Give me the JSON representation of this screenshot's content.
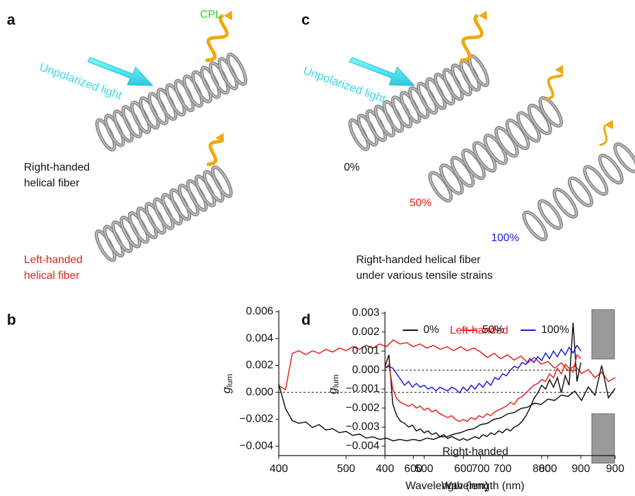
{
  "panels": {
    "a": {
      "label": "a",
      "cpl": "CPL",
      "light": "Unpolarized light",
      "right": [
        "Right-handed",
        "helical fiber"
      ],
      "left": [
        "Left-handed",
        "helical fiber"
      ]
    },
    "c": {
      "label": "c",
      "light": "Unpolarized light",
      "strains": [
        "0%",
        "50%",
        "100%"
      ],
      "caption": [
        "Right-handed helical fiber",
        "under various tensile strains"
      ]
    },
    "b": {
      "label": "b"
    },
    "d": {
      "label": "d"
    }
  },
  "chart_data": [
    {
      "type": "line",
      "xlabel": "Wavelength (nm)",
      "ylabel": {
        "main": "g",
        "sub": "lum"
      },
      "xlim": [
        400,
        900
      ],
      "xticks": [
        400,
        500,
        600,
        700,
        800,
        900
      ],
      "ylim": [
        -0.0047,
        0.006
      ],
      "yticks": [
        {
          "value": -0.004,
          "label": "−0.004"
        },
        {
          "value": -0.002,
          "label": "−0.002"
        },
        {
          "value": 0,
          "label": "0.000"
        },
        0.002,
        0.004,
        0.006
      ],
      "hline": 0,
      "annotations": [
        {
          "text": "Left-handed",
          "color": "#e0201b"
        },
        {
          "text": "Right-handed",
          "color": "#111111"
        }
      ],
      "x": [
        400,
        410,
        420,
        430,
        440,
        450,
        460,
        470,
        480,
        490,
        500,
        510,
        520,
        530,
        540,
        550,
        560,
        570,
        580,
        590,
        600,
        610,
        620,
        630,
        640,
        650,
        660,
        670,
        680,
        690,
        700,
        710,
        720,
        730,
        740,
        750,
        760,
        770,
        780,
        790,
        800,
        810,
        820,
        830,
        840,
        850,
        860,
        870,
        880,
        890,
        900
      ],
      "series": [
        {
          "color": "#e0201b",
          "values": [
            0.0005,
            0.0002,
            0.0029,
            0.0031,
            0.0028,
            0.0031,
            0.0029,
            0.0032,
            0.003,
            0.0033,
            0.0031,
            0.0034,
            0.0032,
            0.0035,
            0.0033,
            0.0036,
            0.0034,
            0.0039,
            0.0036,
            0.0037,
            0.0034,
            0.0036,
            0.0033,
            0.0035,
            0.0032,
            0.0034,
            0.0031,
            0.0034,
            0.0031,
            0.0033,
            0.003,
            0.0026,
            0.0029,
            0.0025,
            0.0028,
            0.0024,
            0.0027,
            0.0022,
            0.0026,
            0.0021,
            0.0023,
            0.0018,
            0.0022,
            0.0016,
            0.002,
            0.0014,
            0.0017,
            0.0011,
            0.0015,
            0.0008,
            0.0011
          ]
        },
        {
          "color": "#111111",
          "values": [
            0.0006,
            -0.0012,
            -0.0021,
            -0.0023,
            -0.0022,
            -0.0026,
            -0.0024,
            -0.0028,
            -0.0027,
            -0.003,
            -0.0029,
            -0.0032,
            -0.0031,
            -0.0034,
            -0.0033,
            -0.0035,
            -0.0034,
            -0.0036,
            -0.0035,
            -0.0036,
            -0.0035,
            -0.0036,
            -0.0034,
            -0.0035,
            -0.0033,
            -0.0033,
            -0.0031,
            -0.003,
            -0.0028,
            -0.0027,
            -0.0024,
            -0.0023,
            -0.002,
            -0.0019,
            -0.0016,
            -0.0015,
            -0.0012,
            -0.0011,
            -0.0008,
            -0.0009,
            -0.0005,
            -0.0006,
            -0.0002,
            -0.0003,
            0.0001,
            -0.0006,
            0.0004,
            -0.0002,
            0.002,
            -0.0004,
            0.0003
          ]
        }
      ]
    },
    {
      "type": "line",
      "xlabel": "Wavelength (nm)",
      "ylabel": {
        "main": "g",
        "sub": "lum"
      },
      "xlim": [
        400,
        900
      ],
      "xticks": [
        400,
        500,
        600,
        700,
        800,
        900
      ],
      "ylim": [
        -0.0045,
        0.003
      ],
      "yticks": [
        {
          "value": -0.004,
          "label": "−0.004"
        },
        {
          "value": -0.003,
          "label": "−0.003"
        },
        {
          "value": -0.002,
          "label": "−0.002"
        },
        {
          "value": -0.001,
          "label": "−0.001"
        },
        {
          "value": 0,
          "label": "0.000"
        },
        0.001,
        0.002,
        0.003
      ],
      "hline": 0,
      "x": [
        400,
        410,
        420,
        430,
        440,
        450,
        460,
        470,
        480,
        490,
        500,
        510,
        520,
        530,
        540,
        550,
        560,
        570,
        580,
        590,
        600,
        610,
        620,
        630,
        640,
        650,
        660,
        670,
        680,
        690,
        700,
        710,
        720,
        730,
        740,
        750,
        760,
        770,
        780,
        790,
        800,
        810,
        820,
        830,
        840,
        850,
        860,
        870,
        880,
        890,
        900
      ],
      "series": [
        {
          "name": "0%",
          "color": "#111111",
          "values": [
            0.0002,
            0.0008,
            -0.0018,
            -0.0024,
            -0.0027,
            -0.0028,
            -0.003,
            -0.0029,
            -0.0032,
            -0.0031,
            -0.0033,
            -0.0032,
            -0.0034,
            -0.0033,
            -0.0035,
            -0.0034,
            -0.0036,
            -0.0035,
            -0.0036,
            -0.0037,
            -0.0036,
            -0.0037,
            -0.0036,
            -0.0035,
            -0.0036,
            -0.0034,
            -0.0035,
            -0.0033,
            -0.0034,
            -0.0032,
            -0.0033,
            -0.0031,
            -0.0032,
            -0.003,
            -0.0029,
            -0.0027,
            -0.0024,
            -0.002,
            -0.0015,
            -0.0012,
            -0.0008,
            -0.001,
            -0.0005,
            -0.0009,
            -0.0004,
            -0.0012,
            -0.0003,
            -0.0008,
            0.0025,
            -0.0006,
            0.0004
          ]
        },
        {
          "name": "50%",
          "color": "#e0201b",
          "values": [
            0.0001,
            0.0003,
            -0.001,
            -0.0015,
            -0.0017,
            -0.0018,
            -0.0019,
            -0.0018,
            -0.002,
            -0.0019,
            -0.0021,
            -0.002,
            -0.0022,
            -0.0021,
            -0.0023,
            -0.0024,
            -0.0025,
            -0.0024,
            -0.0026,
            -0.0027,
            -0.0026,
            -0.0027,
            -0.0025,
            -0.0026,
            -0.0024,
            -0.0025,
            -0.0023,
            -0.0024,
            -0.0022,
            -0.0021,
            -0.002,
            -0.0019,
            -0.0017,
            -0.0018,
            -0.0015,
            -0.0014,
            -0.0012,
            -0.001,
            -0.0008,
            -0.0007,
            -0.0005,
            -0.0006,
            -0.0002,
            -0.0004,
            0.0001,
            -0.0002,
            0.0003,
            0.0001,
            -0.0001,
            0.0008,
            0.0006
          ]
        },
        {
          "name": "100%",
          "color": "#1a1ae0",
          "values": [
            0.0001,
            0.0002,
            0.0001,
            -0.0002,
            -0.0005,
            -0.0008,
            -0.0006,
            -0.0009,
            -0.0007,
            -0.0009,
            -0.0008,
            -0.001,
            -0.0009,
            -0.0011,
            -0.0009,
            -0.001,
            -0.0011,
            -0.0009,
            -0.001,
            -0.0012,
            -0.0009,
            -0.0011,
            -0.0008,
            -0.001,
            -0.0007,
            -0.0009,
            -0.0006,
            -0.0008,
            -0.0004,
            -0.0005,
            -0.0002,
            -0.0003,
            0,
            0.0002,
            0.0001,
            0.0004,
            0.0003,
            0.0006,
            0.0004,
            0.0007,
            0.0005,
            0.0009,
            0.0006,
            0.001,
            0.0007,
            0.0011,
            0.0008,
            0.0012,
            0.0009,
            0.0013,
            0.001
          ]
        }
      ]
    }
  ]
}
